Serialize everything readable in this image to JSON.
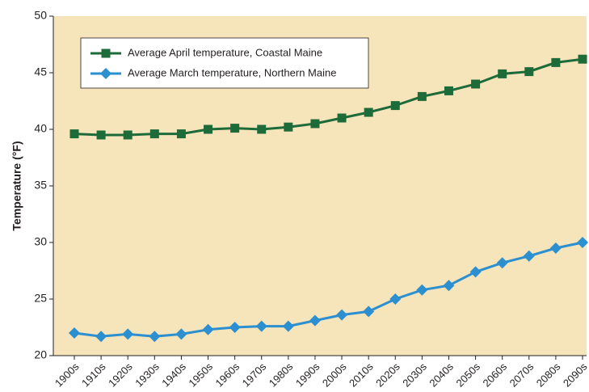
{
  "chart_data": {
    "type": "line",
    "y_label": "Temperature (°F)",
    "categories": [
      "1900s",
      "1910s",
      "1920s",
      "1930s",
      "1940s",
      "1950s",
      "1960s",
      "1970s",
      "1980s",
      "1990s",
      "2000s",
      "2010s",
      "2020s",
      "2030s",
      "2040s",
      "2050s",
      "2060s",
      "2070s",
      "2080s",
      "2090s"
    ],
    "series": [
      {
        "name": "Average April temperature, Coastal Maine",
        "color": "#1e6b3a",
        "marker": "square",
        "values": [
          39.6,
          39.5,
          39.5,
          39.6,
          39.6,
          40.0,
          40.1,
          40.0,
          40.2,
          40.5,
          41.0,
          41.5,
          42.1,
          42.9,
          43.4,
          44.0,
          44.9,
          45.1,
          45.9,
          46.2
        ]
      },
      {
        "name": "Average March temperature, Northern Maine",
        "color": "#2b8fd0",
        "marker": "diamond",
        "values": [
          22.0,
          21.7,
          21.9,
          21.7,
          21.9,
          22.3,
          22.5,
          22.6,
          22.6,
          23.1,
          23.6,
          23.9,
          25.0,
          25.8,
          26.2,
          27.4,
          28.2,
          28.8,
          29.5,
          30.0
        ]
      }
    ],
    "ylim": [
      20,
      50
    ],
    "yticks": [
      20,
      25,
      30,
      35,
      40,
      45,
      50
    ],
    "background": "#f6e4ba",
    "legend": "upper left"
  }
}
